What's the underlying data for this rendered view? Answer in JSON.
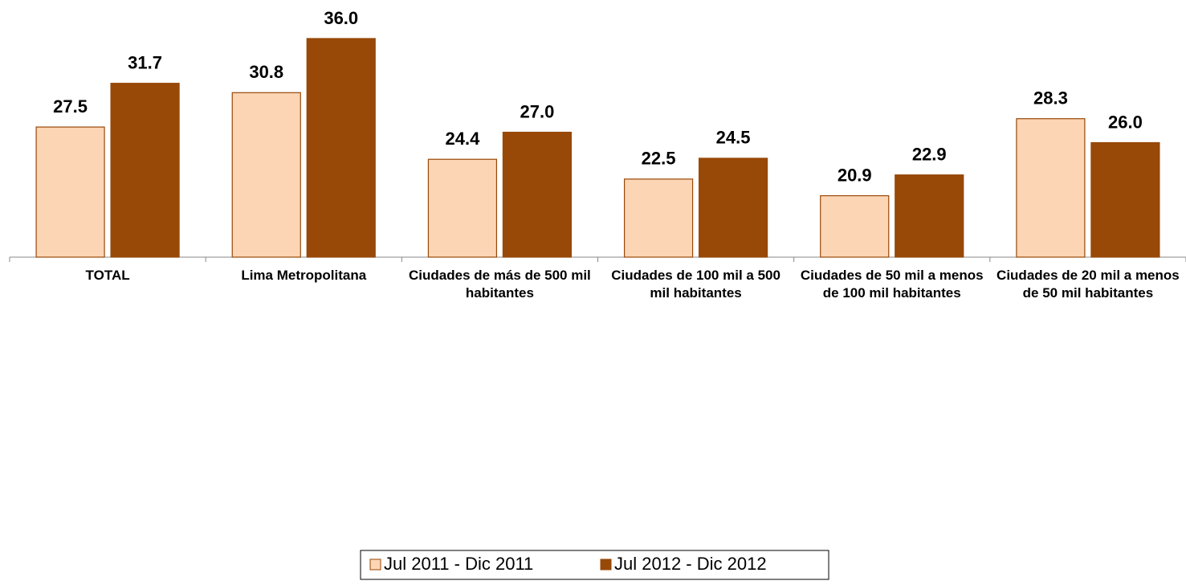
{
  "chart_data": {
    "type": "bar",
    "categories": [
      "TOTAL",
      "Lima Metropolitana",
      "Ciudades de más de 500 mil habitantes",
      "Ciudades de 100 mil a 500 mil habitantes",
      "Ciudades de 50 mil a menos de 100 mil habitantes",
      "Ciudades de 20 mil a menos de 50 mil habitantes"
    ],
    "series": [
      {
        "name": "Jul 2011 - Dic 2011",
        "color": "#fcd5b5",
        "values": [
          27.5,
          30.8,
          24.4,
          22.5,
          20.9,
          28.3
        ],
        "value_labels": [
          "27.5",
          "30.8",
          "24.4",
          "22.5",
          "20.9",
          "28.3"
        ]
      },
      {
        "name": "Jul 2012 - Dic 2012",
        "color": "#984807",
        "values": [
          31.7,
          36.0,
          27.0,
          24.5,
          22.9,
          26.0
        ],
        "value_labels": [
          "31.7",
          "36.0",
          "27.0",
          "24.5",
          "22.9",
          "26.0"
        ]
      }
    ],
    "ylim": [
      15,
      37
    ],
    "legend": "bottom"
  }
}
